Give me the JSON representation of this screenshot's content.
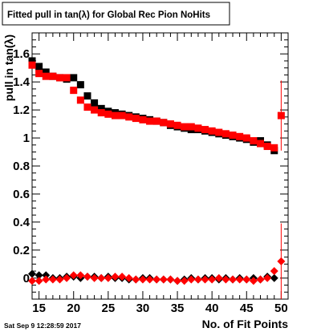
{
  "title": "Fitted pull in tan(λ) for Global Rec Pion NoHits",
  "timestamp": "Sat Sep  9 12:28:59 2017",
  "chart_data": {
    "type": "scatter",
    "title": "Fitted pull in tan(λ) for Global Rec Pion NoHits",
    "xlabel": "No. of Fit Points",
    "ylabel": "pull in tan(λ)",
    "xlim": [
      14,
      51
    ],
    "ylim": [
      -0.15,
      1.75
    ],
    "xticks": [
      15,
      20,
      25,
      30,
      35,
      40,
      45,
      50
    ],
    "yticks": [
      0,
      0.2,
      0.4,
      0.6,
      0.8,
      1,
      1.2,
      1.4,
      1.6
    ],
    "grid": false,
    "x": [
      14,
      15,
      16,
      17,
      18,
      19,
      20,
      21,
      22,
      23,
      24,
      25,
      26,
      27,
      28,
      29,
      30,
      31,
      32,
      33,
      34,
      35,
      36,
      37,
      38,
      39,
      40,
      41,
      42,
      43,
      44,
      45,
      46,
      47,
      48,
      49,
      50
    ],
    "series": [
      {
        "color": "#000000",
        "marker": "square",
        "values": [
          1.55,
          1.51,
          1.47,
          1.44,
          1.43,
          1.42,
          1.43,
          1.38,
          1.3,
          1.25,
          1.21,
          1.19,
          1.18,
          1.17,
          1.16,
          1.15,
          1.14,
          1.13,
          1.12,
          1.11,
          1.09,
          1.08,
          1.07,
          1.06,
          1.06,
          1.05,
          1.04,
          1.03,
          1.02,
          1.01,
          1.0,
          0.99,
          0.97,
          0.98,
          0.95,
          0.91,
          null
        ]
      },
      {
        "color": "#ff0000",
        "marker": "square",
        "values": [
          1.52,
          1.46,
          1.44,
          1.44,
          1.43,
          1.43,
          1.34,
          1.27,
          1.22,
          1.2,
          1.18,
          1.17,
          1.16,
          1.16,
          1.15,
          1.14,
          1.13,
          1.12,
          1.12,
          1.11,
          1.1,
          1.09,
          1.08,
          1.08,
          1.07,
          1.06,
          1.05,
          1.04,
          1.03,
          1.02,
          1.01,
          1.0,
          0.98,
          0.96,
          0.94,
          0.93,
          1.16
        ]
      },
      {
        "color": "#000000",
        "marker": "diamond",
        "values": [
          0.03,
          0.02,
          0.02,
          0.0,
          0.0,
          0.01,
          0.01,
          0.0,
          0.01,
          0.01,
          0.0,
          0.01,
          0.0,
          0.0,
          -0.01,
          -0.01,
          0.0,
          0.0,
          -0.01,
          -0.01,
          -0.01,
          -0.02,
          -0.01,
          0.0,
          -0.01,
          0.0,
          0.0,
          -0.01,
          0.0,
          -0.01,
          0.0,
          -0.01,
          0.0,
          -0.01,
          0.01,
          0.0,
          null
        ]
      },
      {
        "color": "#ff0000",
        "marker": "diamond",
        "values": [
          -0.02,
          -0.02,
          -0.01,
          -0.01,
          -0.01,
          0.0,
          0.02,
          0.02,
          0.01,
          0.0,
          0.0,
          0.0,
          0.01,
          0.01,
          0.0,
          -0.01,
          -0.01,
          -0.01,
          -0.01,
          -0.01,
          -0.01,
          -0.02,
          -0.02,
          -0.01,
          -0.01,
          -0.01,
          -0.01,
          0.0,
          -0.01,
          -0.01,
          -0.01,
          -0.01,
          -0.02,
          -0.01,
          0.0,
          0.05,
          0.12
        ]
      }
    ],
    "error_bars_last_point": {
      "x": 50,
      "high_upper": 1.41,
      "high_lower": 0.91,
      "low_upper": 0.39,
      "low_lower": -0.15
    }
  }
}
